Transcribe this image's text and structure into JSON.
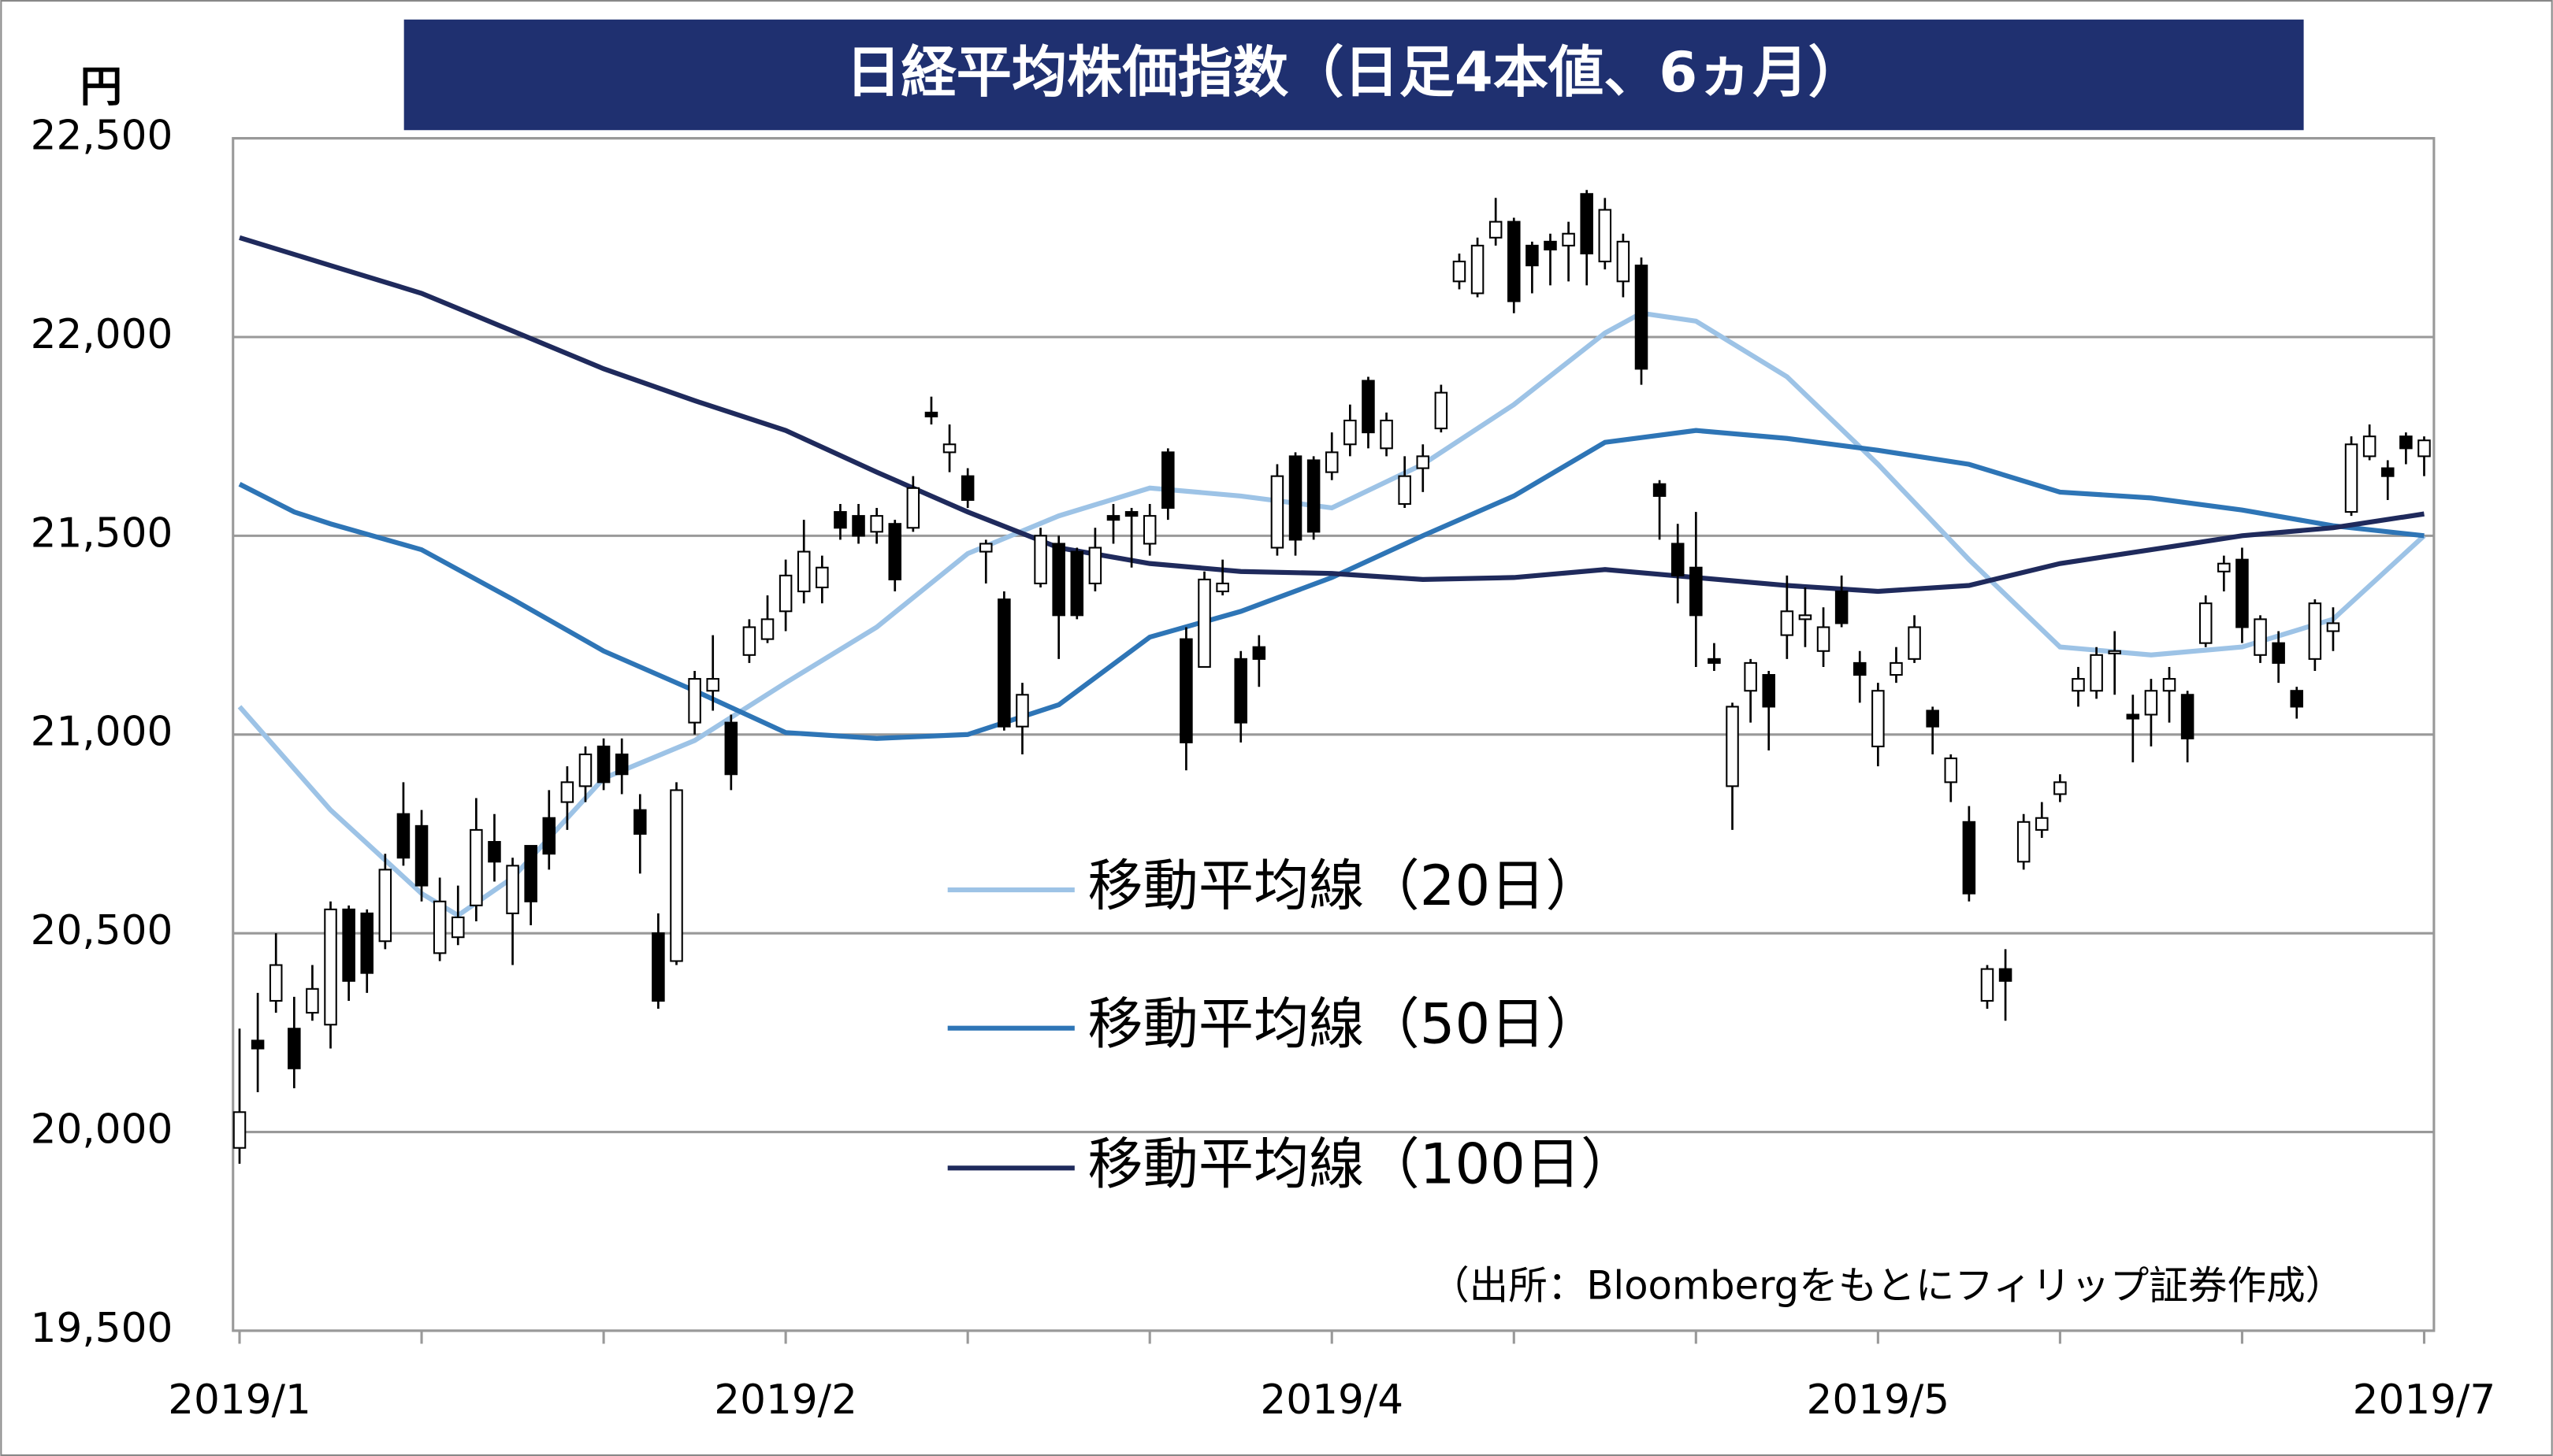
{
  "chart_data": {
    "type": "candlestick",
    "title": "日経平均株価指数（日足4本値、6ヵ月）",
    "y_label": "円",
    "source": "（出所：Bloombergをもとにフィリップ証券作成）",
    "xlim": [
      0,
      120
    ],
    "xticks": [
      {
        "value": 0,
        "label": "2019/1"
      },
      {
        "value": 10,
        "label": null
      },
      {
        "value": 20,
        "label": null
      },
      {
        "value": 30,
        "label": "2019/2"
      },
      {
        "value": 40,
        "label": null
      },
      {
        "value": 50,
        "label": null
      },
      {
        "value": 60,
        "label": "2019/4"
      },
      {
        "value": 70,
        "label": null
      },
      {
        "value": 80,
        "label": null
      },
      {
        "value": 90,
        "label": "2019/5"
      },
      {
        "value": 100,
        "label": null
      },
      {
        "value": 110,
        "label": null
      },
      {
        "value": 120,
        "label": "2019/7"
      }
    ],
    "ylim": [
      19500,
      22500
    ],
    "yticks": [
      {
        "value": 19500,
        "label": "19,500"
      },
      {
        "value": 20000,
        "label": "20,000"
      },
      {
        "value": 20500,
        "label": "20,500"
      },
      {
        "value": 21000,
        "label": "21,000"
      },
      {
        "value": 21500,
        "label": "21,500"
      },
      {
        "value": 22000,
        "label": "22,000"
      },
      {
        "value": 22500,
        "label": "22,500"
      }
    ],
    "grid": true,
    "up_color": "#ffffff",
    "down_color": "#000000",
    "open": [
      19960,
      20230,
      20330,
      20260,
      20300,
      20270,
      20560,
      20550,
      20480,
      20800,
      20770,
      20450,
      20490,
      20570,
      20730,
      20550,
      20720,
      20790,
      20830,
      20870,
      20970,
      20950,
      20810,
      20500,
      20430,
      21030,
      21110,
      21030,
      21200,
      21240,
      21310,
      21360,
      21370,
      21560,
      21550,
      21510,
      21530,
      21520,
      21810,
      21710,
      21650,
      21460,
      21340,
      21020,
      21380,
      21480,
      21460,
      21380,
      21550,
      21560,
      21480,
      21710,
      21240,
      21170,
      21360,
      21190,
      21220,
      21470,
      21700,
      21690,
      21660,
      21730,
      21890,
      21720,
      21580,
      21670,
      21770,
      22140,
      22110,
      22250,
      22290,
      22230,
      22240,
      22230,
      22360,
      22190,
      22140,
      22180,
      21630,
      21480,
      21420,
      21190,
      20870,
      21110,
      21150,
      21250,
      21290,
      21210,
      21360,
      21180,
      20970,
      21150,
      21190,
      21060,
      20880,
      20780,
      20330,
      20410,
      20680,
      20760,
      20850,
      21110,
      21110,
      21210,
      21050,
      21050,
      21110,
      21100,
      21230,
      21410,
      21440,
      21200,
      21230,
      21110,
      21190,
      21260,
      21560,
      21700,
      21670,
      21750,
      21700
    ],
    "high": [
      20260,
      20350,
      20500,
      20340,
      20420,
      20580,
      20570,
      20560,
      20700,
      20880,
      20810,
      20640,
      20620,
      20840,
      20800,
      20690,
      20720,
      20860,
      20920,
      20970,
      20990,
      20990,
      20850,
      20550,
      20880,
      21160,
      21250,
      21050,
      21290,
      21350,
      21440,
      21540,
      21450,
      21580,
      21580,
      21570,
      21540,
      21650,
      21850,
      21780,
      21670,
      21490,
      21360,
      21130,
      21520,
      21500,
      21470,
      21520,
      21580,
      21570,
      21580,
      21720,
      21270,
      21410,
      21440,
      21210,
      21250,
      21680,
      21710,
      21700,
      21760,
      21830,
      21900,
      21810,
      21700,
      21730,
      21880,
      22210,
      22250,
      22350,
      22300,
      22240,
      22260,
      22290,
      22370,
      22350,
      22260,
      22200,
      21640,
      21530,
      21560,
      21230,
      21080,
      21190,
      21160,
      21400,
      21370,
      21320,
      21400,
      21210,
      21130,
      21220,
      21300,
      21070,
      20950,
      20820,
      20420,
      20460,
      20800,
      20830,
      20900,
      21170,
      21220,
      21260,
      21100,
      21140,
      21170,
      21110,
      21350,
      21450,
      21470,
      21300,
      21260,
      21120,
      21340,
      21320,
      21750,
      21780,
      21690,
      21760,
      21750
    ],
    "low": [
      19920,
      20100,
      20300,
      20110,
      20280,
      20210,
      20330,
      20350,
      20460,
      20670,
      20580,
      20430,
      20470,
      20530,
      20630,
      20420,
      20520,
      20660,
      20760,
      20830,
      20860,
      20850,
      20650,
      20310,
      20420,
      21000,
      21060,
      20860,
      21180,
      21230,
      21260,
      21330,
      21330,
      21490,
      21480,
      21480,
      21360,
      21510,
      21780,
      21660,
      21570,
      21380,
      21010,
      20950,
      21370,
      21190,
      21290,
      21360,
      21480,
      21420,
      21450,
      21540,
      20910,
      21170,
      21350,
      20980,
      21120,
      21450,
      21450,
      21490,
      21640,
      21700,
      21720,
      21700,
      21570,
      21610,
      21760,
      22120,
      22100,
      22230,
      22060,
      22110,
      22130,
      22140,
      22130,
      22170,
      22100,
      21880,
      21490,
      21330,
      21170,
      21160,
      20760,
      21030,
      20960,
      21190,
      21220,
      21170,
      21270,
      21080,
      20920,
      21130,
      21180,
      20950,
      20830,
      20580,
      20310,
      20280,
      20660,
      20740,
      20830,
      21070,
      21090,
      21100,
      20930,
      20970,
      21030,
      20930,
      21220,
      21360,
      21230,
      21180,
      21130,
      21040,
      21160,
      21210,
      21550,
      21690,
      21590,
      21680,
      21650
    ],
    "close": [
      20050,
      20210,
      20420,
      20160,
      20360,
      20560,
      20380,
      20400,
      20660,
      20690,
      20620,
      20580,
      20540,
      20760,
      20680,
      20670,
      20580,
      20700,
      20880,
      20950,
      20880,
      20900,
      20750,
      20330,
      20860,
      21140,
      21140,
      20900,
      21270,
      21290,
      21400,
      21460,
      21420,
      21520,
      21500,
      21550,
      21390,
      21620,
      21800,
      21730,
      21590,
      21480,
      21020,
      21100,
      21500,
      21300,
      21300,
      21470,
      21540,
      21550,
      21550,
      21570,
      20980,
      21390,
      21380,
      21030,
      21190,
      21650,
      21490,
      21510,
      21710,
      21790,
      21760,
      21790,
      21650,
      21700,
      21860,
      22190,
      22230,
      22290,
      22090,
      22180,
      22220,
      22260,
      22210,
      22320,
      22240,
      21920,
      21600,
      21400,
      21300,
      21180,
      21070,
      21180,
      21070,
      21310,
      21300,
      21270,
      21280,
      21150,
      21110,
      21180,
      21270,
      21020,
      20940,
      20600,
      20410,
      20380,
      20780,
      20790,
      20880,
      21140,
      21200,
      21210,
      21040,
      21110,
      21140,
      20990,
      21330,
      21430,
      21270,
      21290,
      21180,
      21070,
      21330,
      21280,
      21730,
      21750,
      21650,
      21720,
      21740
    ],
    "series": [
      {
        "name": "移動平均線（20日）",
        "color": "#9dc3e6",
        "x": [
          0,
          5,
          10,
          12,
          15,
          20,
          25,
          30,
          35,
          40,
          45,
          50,
          55,
          60,
          65,
          70,
          75,
          77,
          80,
          85,
          90,
          95,
          100,
          105,
          110,
          115,
          120
        ],
        "values": [
          21070,
          20810,
          20600,
          20545,
          20640,
          20890,
          20985,
          21130,
          21270,
          21455,
          21550,
          21620,
          21600,
          21570,
          21680,
          21830,
          22010,
          22060,
          22040,
          21900,
          21680,
          21440,
          21220,
          21200,
          21220,
          21290,
          21500
        ]
      },
      {
        "name": "移動平均線（50日）",
        "color": "#2e75b6",
        "x": [
          0,
          3,
          5,
          10,
          15,
          20,
          25,
          30,
          35,
          40,
          45,
          50,
          55,
          60,
          65,
          70,
          75,
          80,
          85,
          90,
          95,
          100,
          105,
          110,
          115,
          120
        ],
        "values": [
          21630,
          21560,
          21530,
          21465,
          21340,
          21210,
          21110,
          21005,
          20990,
          21000,
          21075,
          21245,
          21310,
          21395,
          21500,
          21600,
          21735,
          21765,
          21745,
          21715,
          21680,
          21610,
          21595,
          21565,
          21525,
          21500
        ]
      },
      {
        "name": "移動平均線（100日）",
        "color": "#1f2a5c",
        "x": [
          0,
          5,
          10,
          15,
          20,
          25,
          30,
          35,
          40,
          45,
          50,
          55,
          60,
          65,
          70,
          75,
          80,
          85,
          90,
          95,
          100,
          105,
          110,
          115,
          120
        ],
        "values": [
          22250,
          22180,
          22110,
          22015,
          21920,
          21840,
          21765,
          21660,
          21560,
          21470,
          21430,
          21410,
          21405,
          21390,
          21395,
          21415,
          21395,
          21375,
          21360,
          21375,
          21430,
          21465,
          21500,
          21520,
          21555
        ]
      }
    ]
  }
}
